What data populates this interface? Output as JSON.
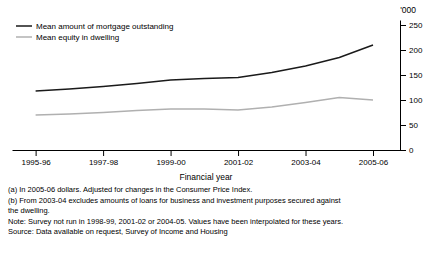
{
  "chart_data": {
    "type": "line",
    "xlabel": "Financial year",
    "ylabel": "'000",
    "x": [
      1995.5,
      1996.5,
      1997.5,
      1998.5,
      1999.5,
      2000.5,
      2001.5,
      2002.5,
      2003.5,
      2004.5,
      2005.5
    ],
    "series": [
      {
        "name": "Mean amount of mortgage outstanding",
        "color": "#1a1a1a",
        "values": [
          118,
          122,
          127,
          133,
          140,
          143,
          145,
          155,
          168,
          185,
          210
        ]
      },
      {
        "name": "Mean equity in dwelling",
        "color": "#b0b0b0",
        "values": [
          70,
          72,
          75,
          79,
          82,
          82,
          80,
          86,
          95,
          105,
          100
        ]
      }
    ],
    "xlim": [
      1994.8,
      2006.3
    ],
    "xticks": [
      {
        "value": 1995.5,
        "label": "1995-96"
      },
      {
        "value": 1997.5,
        "label": "1997-98"
      },
      {
        "value": 1999.5,
        "label": "1999-00"
      },
      {
        "value": 2001.5,
        "label": "2001-02"
      },
      {
        "value": 2003.5,
        "label": "2003-04"
      },
      {
        "value": 2005.5,
        "label": "2005-06"
      }
    ],
    "ylim": [
      0,
      260
    ],
    "yticks": [
      0,
      50,
      100,
      150,
      200,
      250
    ],
    "grid": false,
    "legend": "upper left",
    "annotations": [
      "(a)  In 2005-06 dollars. Adjusted for changes in the Consumer Price Index.",
      "(b)  From 2003-04 excludes amounts of loans for business and investment purposes secured against",
      "the dwelling.",
      "Note: Survey not run in 1998-99, 2001-02 or 2004-05. Values have been interpolated for these years.",
      "Source: Data available on request, Survey of Income and Housing"
    ]
  }
}
